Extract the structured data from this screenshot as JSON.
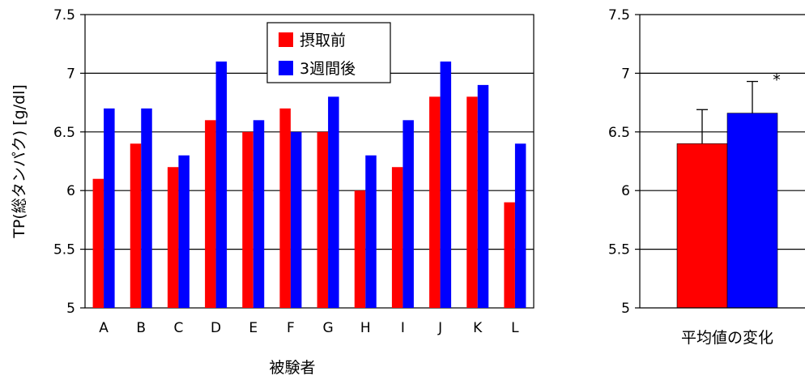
{
  "chart_data": [
    {
      "type": "bar",
      "ylabel": "TP(総タンパク)  [g/dl]",
      "xlabel": "被験者",
      "ylim": [
        5,
        7.5
      ],
      "yticks": [
        "5",
        "5.5",
        "6",
        "6.5",
        "7",
        "7.5"
      ],
      "categories": [
        "A",
        "B",
        "C",
        "D",
        "E",
        "F",
        "G",
        "H",
        "I",
        "J",
        "K",
        "L"
      ],
      "series": [
        {
          "name": "摂取前",
          "color": "#ff0000",
          "values": [
            6.1,
            6.4,
            6.2,
            6.6,
            6.5,
            6.7,
            6.5,
            6.0,
            6.2,
            6.8,
            6.8,
            5.9
          ]
        },
        {
          "name": "3週間後",
          "color": "#0000ff",
          "values": [
            6.7,
            6.7,
            6.3,
            7.1,
            6.6,
            6.5,
            6.8,
            6.3,
            6.6,
            7.1,
            6.9,
            6.4
          ]
        }
      ],
      "grid": true,
      "legend": "top-center"
    },
    {
      "type": "bar",
      "xlabel": "平均値の変化",
      "ylim": [
        5,
        7.5
      ],
      "yticks": [
        "5",
        "5.5",
        "6",
        "6.5",
        "7",
        "7.5"
      ],
      "series": [
        {
          "name": "摂取前",
          "color": "#ff0000",
          "value": 6.4,
          "error": 0.29
        },
        {
          "name": "3週間後",
          "color": "#0000ff",
          "value": 6.66,
          "error": 0.27
        }
      ],
      "annotation": "*"
    }
  ]
}
